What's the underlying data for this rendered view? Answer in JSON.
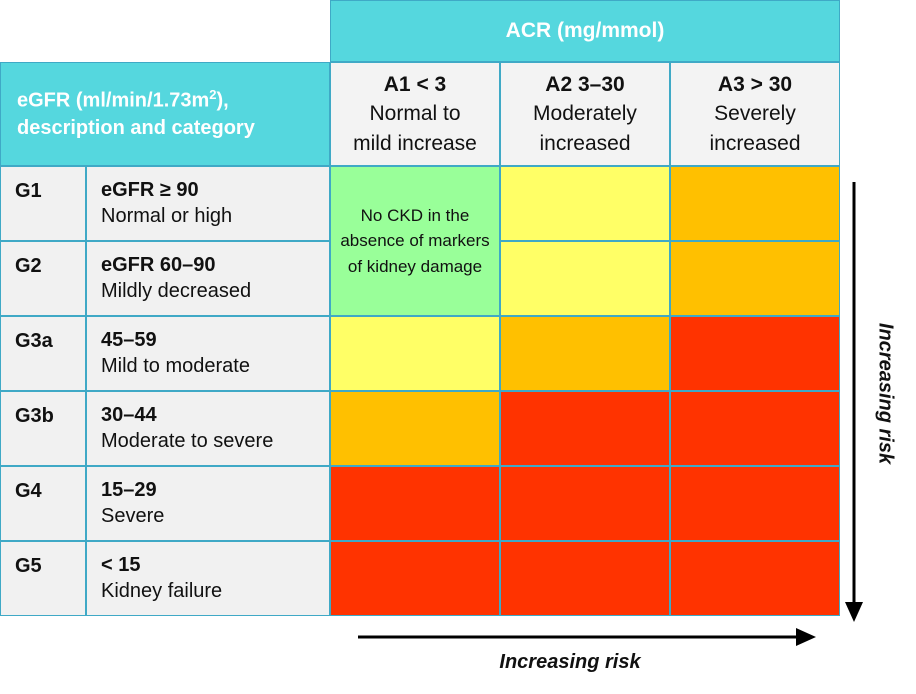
{
  "acr_header": "ACR (mg/mmol)",
  "egfr_header_line1": "eGFR (ml/min/1.73m",
  "egfr_header_sup": "2",
  "egfr_header_line1_end": "),",
  "egfr_header_line2": "description and category",
  "columns": [
    {
      "code": "A1 < 3",
      "desc1": "Normal to",
      "desc2": "mild increase"
    },
    {
      "code": "A2 3–30",
      "desc1": "Moderately",
      "desc2": "increased"
    },
    {
      "code": "A3 > 30",
      "desc1": "Severely",
      "desc2": "increased"
    }
  ],
  "rows": [
    {
      "code": "G1",
      "range": "eGFR ≥ 90",
      "desc": "Normal or high"
    },
    {
      "code": "G2",
      "range": "eGFR 60–90",
      "desc": "Mildly decreased"
    },
    {
      "code": "G3a",
      "range": "45–59",
      "desc": "Mild to moderate"
    },
    {
      "code": "G3b",
      "range": "30–44",
      "desc": "Moderate to severe"
    },
    {
      "code": "G4",
      "range": "15–29",
      "desc": "Severe"
    },
    {
      "code": "G5",
      "range": "< 15",
      "desc": "Kidney failure"
    }
  ],
  "no_ckd_text": "No CKD in the absence of markers of kidney damage",
  "risk_colors": {
    "green": "#99ff99",
    "yellow": "#ffff66",
    "orange": "#ffc000",
    "red": "#ff3300"
  },
  "risk_grid": [
    [
      "green",
      "yellow",
      "orange"
    ],
    [
      "green",
      "yellow",
      "orange"
    ],
    [
      "yellow",
      "orange",
      "red"
    ],
    [
      "orange",
      "red",
      "red"
    ],
    [
      "red",
      "red",
      "red"
    ],
    [
      "red",
      "red",
      "red"
    ]
  ],
  "horizontal_arrow_label": "Increasing risk",
  "vertical_arrow_label": "Increasing risk"
}
